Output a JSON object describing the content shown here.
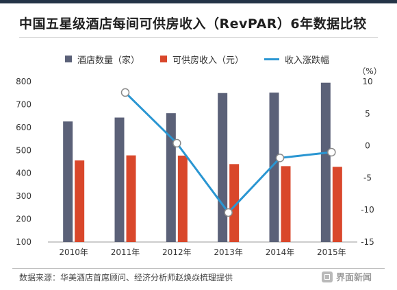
{
  "title": "中国五星级酒店每间可供房收入（RevPAR）6年数据比较",
  "colors": {
    "hotels": "#5b6178",
    "revenue": "#d9472b",
    "growth": "#2a96d2",
    "topbar": "#243447"
  },
  "right_axis_unit": "（%）",
  "source": "数据来源：华美酒店首席顾问、经济分析师赵焕焱梳理提供",
  "brand": "界面新闻",
  "chart_data": {
    "type": "bar",
    "categories": [
      "2010年",
      "2011年",
      "2012年",
      "2013年",
      "2014年",
      "2015年"
    ],
    "series": [
      {
        "name": "酒店数量（家）",
        "type": "bar",
        "axis": "left",
        "values": [
          626,
          643,
          662,
          750,
          752,
          795
        ]
      },
      {
        "name": "可供房收入（元）",
        "type": "bar",
        "axis": "left",
        "values": [
          456,
          478,
          477,
          440,
          431,
          428
        ]
      },
      {
        "name": "收入涨跌幅",
        "type": "line",
        "axis": "right",
        "values": [
          null,
          8.3,
          0.4,
          -10.4,
          -1.9,
          -1.0
        ]
      }
    ],
    "ylim_left": [
      100,
      800
    ],
    "yticks_left": [
      100,
      200,
      300,
      400,
      500,
      600,
      700,
      800
    ],
    "ylim_right": [
      -15,
      10
    ],
    "yticks_right": [
      -15,
      -10,
      -5,
      0,
      5,
      10
    ],
    "legend_position": "top",
    "grid": false
  }
}
